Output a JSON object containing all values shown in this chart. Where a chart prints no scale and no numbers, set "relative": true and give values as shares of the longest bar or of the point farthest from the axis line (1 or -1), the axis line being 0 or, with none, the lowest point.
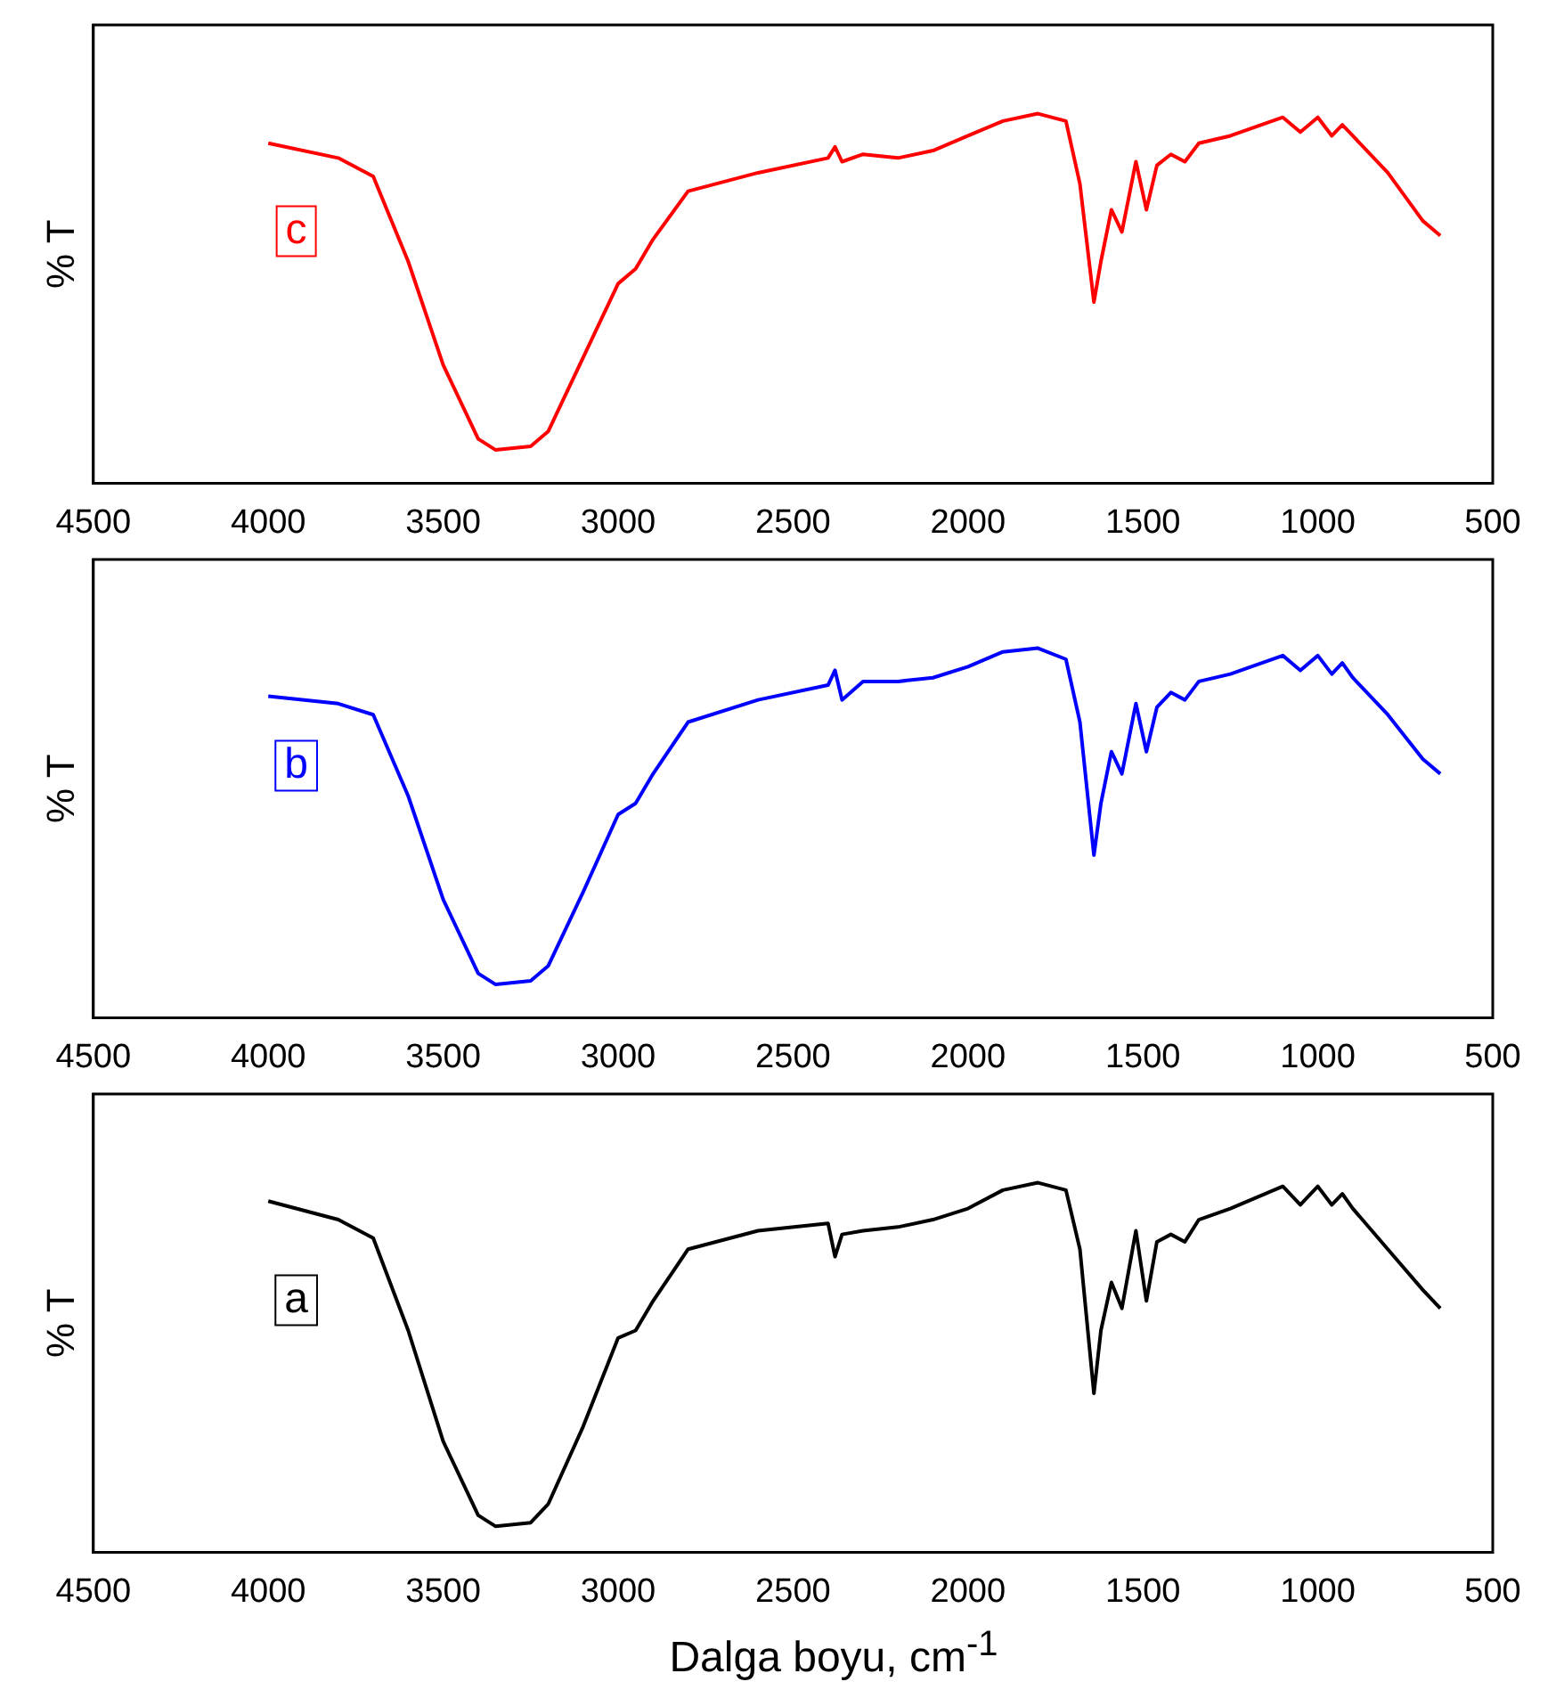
{
  "chart_data": [
    {
      "type": "line",
      "ylabel": "% T",
      "relative": true,
      "legend": false,
      "grid": false,
      "tick_labels": "x",
      "xlim": [
        4500,
        500
      ],
      "xticks": [
        4500,
        4000,
        3500,
        3000,
        2500,
        2000,
        1500,
        1000,
        500
      ],
      "x": [
        4000,
        3800,
        3700,
        3600,
        3500,
        3400,
        3350,
        3250,
        3200,
        3100,
        3000,
        2950,
        2900,
        2800,
        2600,
        2400,
        2380,
        2360,
        2300,
        2200,
        2100,
        2000,
        1900,
        1800,
        1720,
        1680,
        1640,
        1620,
        1590,
        1560,
        1520,
        1490,
        1460,
        1420,
        1380,
        1340,
        1250,
        1100,
        1050,
        1000,
        960,
        930,
        900,
        800,
        700,
        650
      ],
      "series": [
        {
          "name": "c",
          "color": "#ff0000",
          "values": [
            0.92,
            0.88,
            0.83,
            0.6,
            0.32,
            0.12,
            0.09,
            0.1,
            0.14,
            0.34,
            0.54,
            0.58,
            0.66,
            0.79,
            0.84,
            0.88,
            0.91,
            0.87,
            0.89,
            0.88,
            0.9,
            0.94,
            0.98,
            1,
            0.98,
            0.81,
            0.49,
            0.6,
            0.74,
            0.68,
            0.87,
            0.74,
            0.86,
            0.89,
            0.87,
            0.92,
            0.94,
            0.99,
            0.95,
            0.99,
            0.94,
            0.97,
            0.94,
            0.84,
            0.71,
            0.67
          ]
        }
      ]
    },
    {
      "type": "line",
      "ylabel": "% T",
      "relative": true,
      "legend": false,
      "grid": false,
      "tick_labels": "x",
      "xlim": [
        4500,
        500
      ],
      "xticks": [
        4500,
        4000,
        3500,
        3000,
        2500,
        2000,
        1500,
        1000,
        500
      ],
      "x": [
        4000,
        3800,
        3700,
        3600,
        3500,
        3400,
        3350,
        3250,
        3200,
        3100,
        3000,
        2950,
        2900,
        2800,
        2600,
        2400,
        2380,
        2360,
        2300,
        2200,
        2100,
        2000,
        1900,
        1800,
        1720,
        1680,
        1640,
        1620,
        1590,
        1560,
        1520,
        1490,
        1460,
        1420,
        1380,
        1340,
        1250,
        1100,
        1050,
        1000,
        960,
        930,
        900,
        800,
        700,
        650
      ],
      "series": [
        {
          "name": "b",
          "color": "#0000ff",
          "values": [
            0.87,
            0.85,
            0.82,
            0.6,
            0.32,
            0.12,
            0.09,
            0.1,
            0.14,
            0.34,
            0.55,
            0.58,
            0.66,
            0.8,
            0.86,
            0.9,
            0.94,
            0.86,
            0.91,
            0.91,
            0.92,
            0.95,
            0.99,
            1,
            0.97,
            0.8,
            0.44,
            0.58,
            0.72,
            0.66,
            0.85,
            0.72,
            0.84,
            0.88,
            0.86,
            0.91,
            0.93,
            0.98,
            0.94,
            0.98,
            0.93,
            0.96,
            0.92,
            0.82,
            0.7,
            0.66
          ]
        }
      ]
    },
    {
      "type": "line",
      "ylabel": "% T",
      "xlabel": "Dalga boyu, cm$^{-1}$",
      "relative": true,
      "legend": false,
      "grid": false,
      "tick_labels": "x",
      "xlim": [
        4500,
        500
      ],
      "xticks": [
        4500,
        4000,
        3500,
        3000,
        2500,
        2000,
        1500,
        1000,
        500
      ],
      "x": [
        4000,
        3800,
        3700,
        3600,
        3500,
        3400,
        3350,
        3250,
        3200,
        3100,
        3000,
        2950,
        2900,
        2800,
        2600,
        2400,
        2380,
        2360,
        2300,
        2200,
        2100,
        2000,
        1900,
        1800,
        1720,
        1680,
        1640,
        1620,
        1590,
        1560,
        1520,
        1490,
        1460,
        1420,
        1380,
        1340,
        1250,
        1100,
        1050,
        1000,
        960,
        930,
        900,
        800,
        700,
        650
      ],
      "series": [
        {
          "name": "a",
          "color": "#000000",
          "values": [
            0.95,
            0.9,
            0.85,
            0.6,
            0.3,
            0.1,
            0.07,
            0.08,
            0.13,
            0.34,
            0.58,
            0.6,
            0.68,
            0.82,
            0.87,
            0.89,
            0.8,
            0.86,
            0.87,
            0.88,
            0.9,
            0.93,
            0.98,
            1,
            0.98,
            0.82,
            0.43,
            0.6,
            0.73,
            0.66,
            0.87,
            0.68,
            0.84,
            0.86,
            0.84,
            0.9,
            0.93,
            0.99,
            0.94,
            0.99,
            0.94,
            0.97,
            0.93,
            0.82,
            0.71,
            0.66
          ]
        }
      ]
    }
  ]
}
